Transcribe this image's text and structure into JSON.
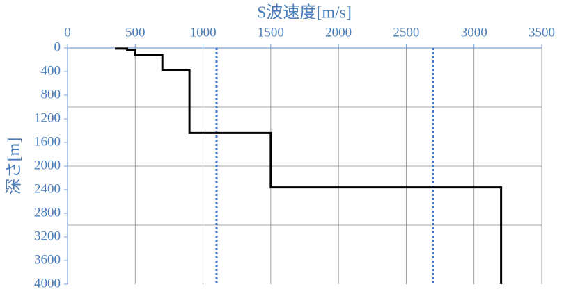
{
  "chart_data": {
    "type": "line",
    "xlabel": "S波速度[m/s]",
    "ylabel": "深さ[m]",
    "xlim": [
      0,
      3500
    ],
    "xticks": [
      0,
      500,
      1000,
      1500,
      2000,
      2500,
      3000,
      3500
    ],
    "ylim": [
      0,
      4000
    ],
    "y_inverted": true,
    "yticks": [
      0,
      400,
      800,
      1200,
      1600,
      2000,
      2400,
      2800,
      3200,
      3600,
      4000
    ],
    "ygrid": [
      1000,
      2000,
      3000
    ],
    "xgrid": true,
    "series": [
      {
        "color": "#000000",
        "x": [
          350,
          440,
          440,
          500,
          500,
          700,
          700,
          900,
          900,
          1500,
          1500,
          3200,
          3200
        ],
        "values": [
          10,
          10,
          40,
          40,
          120,
          120,
          370,
          370,
          1440,
          1440,
          2360,
          2360,
          4000
        ]
      }
    ],
    "vlines": [
      {
        "x": 1100,
        "color": "#3a78d8"
      },
      {
        "x": 2700,
        "color": "#3a78d8"
      }
    ]
  }
}
